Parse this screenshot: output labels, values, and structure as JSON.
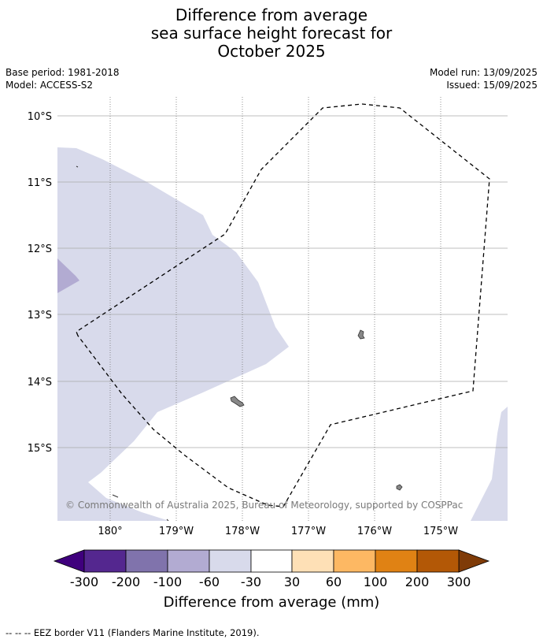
{
  "title": {
    "line1": "Difference from average",
    "line2": "sea surface height forecast for",
    "line3": "October 2025"
  },
  "meta": {
    "base_period": "Base period: 1981-2018",
    "model": "Model: ACCESS-S2",
    "model_run": "Model run: 13/09/2025",
    "issued": "Issued: 15/09/2025"
  },
  "map": {
    "lat_labels": [
      "10°S",
      "11°S",
      "12°S",
      "13°S",
      "14°S",
      "15°S"
    ],
    "lon_labels": [
      "180°",
      "179°W",
      "178°W",
      "177°W",
      "176°W",
      "175°W"
    ],
    "copyright": "© Commonwealth of Australia 2025, Bureau of Meteorology, supported by COSPPac"
  },
  "colorbar": {
    "ticks": [
      "-300",
      "-200",
      "-100",
      "-60",
      "-30",
      "30",
      "60",
      "100",
      "200",
      "300"
    ],
    "colors": [
      "#54278f",
      "#8073ac",
      "#b2abd2",
      "#d8daeb",
      "#ffffff",
      "#fee0b6",
      "#fdb863",
      "#e08214",
      "#b35806"
    ],
    "under_color": "#3f007d",
    "over_color": "#7f3b08",
    "label": "Difference from average (mm)"
  },
  "footer": "--  --  -- EEZ border V11 (Flanders Marine Institute, 2019)."
}
